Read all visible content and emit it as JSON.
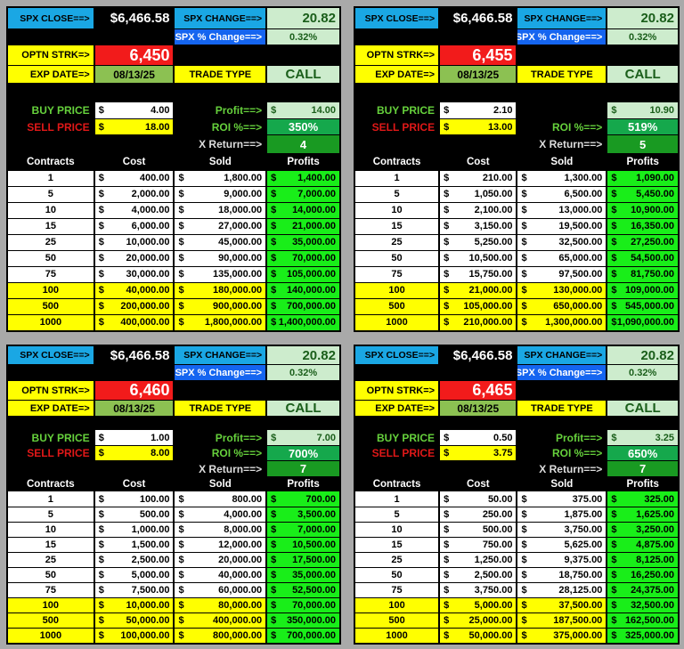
{
  "labels": {
    "spx_close": "SPX CLOSE==>",
    "spx_change": "SPX CHANGE==>",
    "spx_pct": "SPX % Change==>",
    "strike": "OPTN STRK=>",
    "exp": "EXP DATE=>",
    "trade_type": "TRADE TYPE",
    "buy": "BUY PRICE",
    "sell": "SELL PRICE",
    "roi": "ROI %==>",
    "xret": "X Return==>",
    "currency": "$",
    "headers": [
      "Contracts",
      "Cost",
      "Sold",
      "Profits"
    ]
  },
  "colors": {
    "background": "#a9a9a9",
    "cyan": "#1aa7e4",
    "blue": "#1565f0",
    "light_green": "#cdeccd",
    "yellow": "#ffff00",
    "red": "#f21b1b",
    "olive": "#8cc152",
    "profit_green": "#19ee19",
    "roi_green": "#15a84c"
  },
  "panels": [
    {
      "spx_close": "$6,466.58",
      "spx_change": "20.82",
      "spx_pct": "0.32%",
      "strike": "6,450",
      "exp": "08/13/25",
      "trade_type": "CALL",
      "buy": "4.00",
      "sell": "18.00",
      "profit_label": "Profit==>",
      "profit": "14.00",
      "roi": "350%",
      "xret": "4",
      "rows": [
        [
          "1",
          "400.00",
          "1,800.00",
          "1,400.00"
        ],
        [
          "5",
          "2,000.00",
          "9,000.00",
          "7,000.00"
        ],
        [
          "10",
          "4,000.00",
          "18,000.00",
          "14,000.00"
        ],
        [
          "15",
          "6,000.00",
          "27,000.00",
          "21,000.00"
        ],
        [
          "25",
          "10,000.00",
          "45,000.00",
          "35,000.00"
        ],
        [
          "50",
          "20,000.00",
          "90,000.00",
          "70,000.00"
        ],
        [
          "75",
          "30,000.00",
          "135,000.00",
          "105,000.00"
        ],
        [
          "100",
          "40,000.00",
          "180,000.00",
          "140,000.00"
        ],
        [
          "500",
          "200,000.00",
          "900,000.00",
          "700,000.00"
        ],
        [
          "1000",
          "400,000.00",
          "1,800,000.00",
          "1,400,000.00"
        ]
      ]
    },
    {
      "spx_close": "$6,466.58",
      "spx_change": "20.82",
      "spx_pct": "0.32%",
      "strike": "6,455",
      "exp": "08/13/25",
      "trade_type": "CALL",
      "buy": "2.10",
      "sell": "13.00",
      "profit_label": "",
      "profit": "10.90",
      "roi": "519%",
      "xret": "5",
      "rows": [
        [
          "1",
          "210.00",
          "1,300.00",
          "1,090.00"
        ],
        [
          "5",
          "1,050.00",
          "6,500.00",
          "5,450.00"
        ],
        [
          "10",
          "2,100.00",
          "13,000.00",
          "10,900.00"
        ],
        [
          "15",
          "3,150.00",
          "19,500.00",
          "16,350.00"
        ],
        [
          "25",
          "5,250.00",
          "32,500.00",
          "27,250.00"
        ],
        [
          "50",
          "10,500.00",
          "65,000.00",
          "54,500.00"
        ],
        [
          "75",
          "15,750.00",
          "97,500.00",
          "81,750.00"
        ],
        [
          "100",
          "21,000.00",
          "130,000.00",
          "109,000.00"
        ],
        [
          "500",
          "105,000.00",
          "650,000.00",
          "545,000.00"
        ],
        [
          "1000",
          "210,000.00",
          "1,300,000.00",
          "1,090,000.00"
        ]
      ]
    },
    {
      "spx_close": "$6,466.58",
      "spx_change": "20.82",
      "spx_pct": "0.32%",
      "strike": "6,460",
      "exp": "08/13/25",
      "trade_type": "CALL",
      "buy": "1.00",
      "sell": "8.00",
      "profit_label": "Profit==>",
      "profit": "7.00",
      "roi": "700%",
      "xret": "7",
      "rows": [
        [
          "1",
          "100.00",
          "800.00",
          "700.00"
        ],
        [
          "5",
          "500.00",
          "4,000.00",
          "3,500.00"
        ],
        [
          "10",
          "1,000.00",
          "8,000.00",
          "7,000.00"
        ],
        [
          "15",
          "1,500.00",
          "12,000.00",
          "10,500.00"
        ],
        [
          "25",
          "2,500.00",
          "20,000.00",
          "17,500.00"
        ],
        [
          "50",
          "5,000.00",
          "40,000.00",
          "35,000.00"
        ],
        [
          "75",
          "7,500.00",
          "60,000.00",
          "52,500.00"
        ],
        [
          "100",
          "10,000.00",
          "80,000.00",
          "70,000.00"
        ],
        [
          "500",
          "50,000.00",
          "400,000.00",
          "350,000.00"
        ],
        [
          "1000",
          "100,000.00",
          "800,000.00",
          "700,000.00"
        ]
      ]
    },
    {
      "spx_close": "$6,466.58",
      "spx_change": "20.82",
      "spx_pct": "0.32%",
      "strike": "6,465",
      "exp": "08/13/25",
      "trade_type": "CALL",
      "buy": "0.50",
      "sell": "3.75",
      "profit_label": "Profit==>",
      "profit": "3.25",
      "roi": "650%",
      "xret": "7",
      "rows": [
        [
          "1",
          "50.00",
          "375.00",
          "325.00"
        ],
        [
          "5",
          "250.00",
          "1,875.00",
          "1,625.00"
        ],
        [
          "10",
          "500.00",
          "3,750.00",
          "3,250.00"
        ],
        [
          "15",
          "750.00",
          "5,625.00",
          "4,875.00"
        ],
        [
          "25",
          "1,250.00",
          "9,375.00",
          "8,125.00"
        ],
        [
          "50",
          "2,500.00",
          "18,750.00",
          "16,250.00"
        ],
        [
          "75",
          "3,750.00",
          "28,125.00",
          "24,375.00"
        ],
        [
          "100",
          "5,000.00",
          "37,500.00",
          "32,500.00"
        ],
        [
          "500",
          "25,000.00",
          "187,500.00",
          "162,500.00"
        ],
        [
          "1000",
          "50,000.00",
          "375,000.00",
          "325,000.00"
        ]
      ]
    }
  ]
}
